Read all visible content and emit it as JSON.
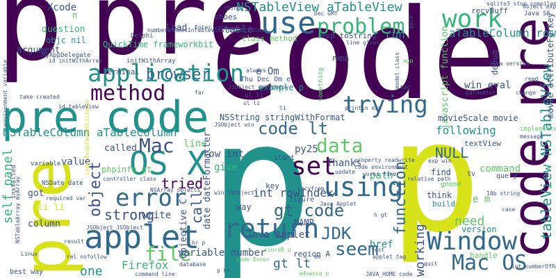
{
  "palette": {
    "dark_purple": "#440154",
    "deep_blue": "#3b528b",
    "teal": "#21918c",
    "green": "#5ec962",
    "yellow": "#d8e219",
    "navy": "#31688e",
    "sea_green": "#35b779"
  },
  "words": [
    {
      "text": "code",
      "color": "#440154"
    },
    {
      "text": "p",
      "color": "#21918c"
    },
    {
      "text": "pre",
      "color": "#440154"
    },
    {
      "text": "p",
      "color": "#440154"
    },
    {
      "text": "pre code",
      "color": "#21918c"
    },
    {
      "text": "pre",
      "color": "#d8e219"
    },
    {
      "text": "p",
      "color": "#d8e219"
    },
    {
      "text": "code pre",
      "color": "#440154"
    },
    {
      "text": "applet",
      "color": "#31688e"
    },
    {
      "text": "application",
      "color": "#21918c"
    },
    {
      "text": "use",
      "color": "#31688e"
    },
    {
      "text": "OS X",
      "color": "#21918c"
    },
    {
      "text": "return",
      "color": "#31688e"
    },
    {
      "text": "using",
      "color": "#31688e"
    },
    {
      "text": "work",
      "color": "#35b779"
    },
    {
      "text": "problem",
      "color": "#35b779"
    },
    {
      "text": "trying",
      "color": "#31688e"
    },
    {
      "text": "Window",
      "color": "#31688e"
    },
    {
      "text": "Mac OS",
      "color": "#31688e"
    },
    {
      "text": "error",
      "color": "#31688e"
    },
    {
      "text": "method",
      "color": "#440154"
    },
    {
      "text": "set",
      "color": "#440154"
    },
    {
      "text": "NSTableView aTableView",
      "color": "#21918c"
    },
    {
      "text": "aTableColumn row",
      "color": "#21918c"
    },
    {
      "text": "tableView NSTableView",
      "color": "#21918c"
    },
    {
      "text": "object",
      "color": "#3b528b"
    },
    {
      "text": "file",
      "color": "#5ec962"
    },
    {
      "text": "browser",
      "color": "#31688e"
    },
    {
      "text": "Mac",
      "color": "#3b528b"
    },
    {
      "text": "data",
      "color": "#5ec962"
    },
    {
      "text": "code lt",
      "color": "#31688e"
    },
    {
      "text": "gt code",
      "color": "#31688e"
    },
    {
      "text": "function",
      "color": "#31688e"
    },
    {
      "text": "seem",
      "color": "#31688e"
    },
    {
      "text": "JDK",
      "color": "#31688e"
    },
    {
      "text": "Firefox",
      "color": "#35b779"
    },
    {
      "text": "strong",
      "color": "#3b528b"
    },
    {
      "text": "tried",
      "color": "#440154"
    },
    {
      "text": "call",
      "color": "#3b528b"
    },
    {
      "text": "NSTableColumn aTableColumn",
      "color": "#21918c"
    },
    {
      "text": "self panel",
      "color": "#35b779"
    },
    {
      "text": "NULL",
      "color": "#31688e"
    },
    {
      "text": "need",
      "color": "#5ec962"
    },
    {
      "text": "working",
      "color": "#3b528b"
    },
    {
      "text": "one",
      "color": "#21918c"
    },
    {
      "text": "gt lt",
      "color": "#31688e"
    },
    {
      "text": "Java Applet",
      "color": "#3b528b"
    },
    {
      "text": "int rowIndex",
      "color": "#3b528b"
    },
    {
      "text": "following",
      "color": "#21918c"
    },
    {
      "text": "run",
      "color": "#21918c"
    },
    {
      "text": "Xcode",
      "color": "#3b528b"
    },
    {
      "text": "question",
      "color": "#35b779"
    },
    {
      "text": "argument",
      "color": "#3b528b"
    },
    {
      "text": "load",
      "color": "#3b528b"
    },
    {
      "text": "table",
      "color": "#3b528b"
    },
    {
      "text": "e Om",
      "color": "#3b528b"
    },
    {
      "text": "NSString stringWithFormat",
      "color": "#3b528b"
    },
    {
      "text": "line",
      "color": "#5ec962"
    },
    {
      "text": "value",
      "color": "#3b528b"
    },
    {
      "text": "py25",
      "color": "#3b528b"
    },
    {
      "text": "Thanks",
      "color": "#3b528b"
    },
    {
      "text": "give",
      "color": "#35b779"
    },
    {
      "text": "row int",
      "color": "#3b528b"
    },
    {
      "text": "path",
      "color": "#35b779"
    },
    {
      "text": "command",
      "color": "#5ec962"
    },
    {
      "text": "href",
      "color": "#21918c"
    },
    {
      "text": "MAMP",
      "color": "#3b528b"
    },
    {
      "text": "variable number",
      "color": "#3b528b"
    },
    {
      "text": "date dateFormatter",
      "color": "#3b528b"
    },
    {
      "text": "Objective C",
      "color": "#3b528b"
    },
    {
      "text": "write",
      "color": "#3b528b"
    },
    {
      "text": "got",
      "color": "#3b528b"
    },
    {
      "text": "li li",
      "color": "#d8e219"
    },
    {
      "text": "column",
      "color": "#3b528b"
    },
    {
      "text": "called",
      "color": "#3b528b"
    },
    {
      "text": "textView",
      "color": "#3b528b"
    },
    {
      "text": "win eval",
      "color": "#3b528b"
    },
    {
      "text": "debug",
      "color": "#3b528b"
    },
    {
      "text": "javascript function",
      "color": "#5ec962"
    },
    {
      "text": "movie attributeForKey",
      "color": "#3b528b"
    },
    {
      "text": "movieScale movie",
      "color": "#3b528b"
    },
    {
      "text": "QuickTime frameworkbit",
      "color": "#35b779"
    },
    {
      "text": "initWithArray",
      "color": "#3b528b"
    },
    {
      "text": "objc nil",
      "color": "#21918c"
    },
    {
      "text": "version",
      "color": "#21918c"
    },
    {
      "text": "e m",
      "color": "#5ec962"
    },
    {
      "text": "class method",
      "color": "#5ec962"
    },
    {
      "text": "exp toString",
      "color": "#3b528b"
    },
    {
      "text": "key",
      "color": "#3b528b"
    },
    {
      "text": "think",
      "color": "#3b528b"
    },
    {
      "text": "find",
      "color": "#3b528b"
    },
    {
      "text": "gnome",
      "color": "#5ec962"
    },
    {
      "text": "phpinfo gt",
      "color": "#5ec962"
    },
    {
      "text": "terminal",
      "color": "#3b528b"
    },
    {
      "text": "shoes",
      "color": "#3b528b"
    },
    {
      "text": "recvBuff",
      "color": "#3b528b"
    },
    {
      "text": "n",
      "color": "#5ec962"
    },
    {
      "text": "way",
      "color": "#3b528b"
    },
    {
      "text": "figure",
      "color": "#3b528b"
    },
    {
      "text": "build",
      "color": "#21918c"
    },
    {
      "text": "region A",
      "color": "#3b528b"
    },
    {
      "text": "handle",
      "color": "#5ec962"
    },
    {
      "text": "FMDB",
      "color": "#3b528b"
    },
    {
      "text": "start",
      "color": "#3b528b"
    },
    {
      "text": "Delphi",
      "color": "#3b528b"
    },
    {
      "text": "Java SE",
      "color": "#3b528b"
    },
    {
      "text": "MyAppDelegate",
      "color": "#3b528b"
    },
    {
      "text": "id initWithArray",
      "color": "#3b528b"
    },
    {
      "text": "best way",
      "color": "#3b528b"
    },
    {
      "text": "Linux",
      "color": "#3b528b"
    },
    {
      "text": "NSDate date",
      "color": "#3b528b"
    },
    {
      "text": "required var",
      "color": "#3b528b"
    },
    {
      "text": "variable",
      "color": "#3b528b"
    },
    {
      "text": "installed",
      "color": "#3b528b"
    },
    {
      "text": "take created",
      "color": "#3b528b"
    },
    {
      "text": "environment variable",
      "color": "#3b528b"
    },
    {
      "text": "result",
      "color": "#3b528b"
    },
    {
      "text": "rel nofollow",
      "color": "#3b528b"
    },
    {
      "text": "command line",
      "color": "#3b528b"
    },
    {
      "text": "database",
      "color": "#3b528b"
    },
    {
      "text": "JSObject win",
      "color": "#3b528b"
    },
    {
      "text": "JSObject JSObject",
      "color": "#3b528b"
    },
    {
      "text": "NSArray objects",
      "color": "#3b528b"
    },
    {
      "text": "controller class",
      "color": "#3b528b"
    },
    {
      "text": "ul li",
      "color": "#3b528b"
    },
    {
      "text": "Enter code",
      "color": "#3b528b"
    },
    {
      "text": "Thu Dec Om e",
      "color": "#3b528b"
    },
    {
      "text": "JSObject getWindow",
      "color": "#3b528b"
    },
    {
      "text": "always",
      "color": "#3b528b"
    },
    {
      "text": "example p",
      "color": "#21918c"
    },
    {
      "text": "println exp",
      "color": "#3b528b"
    },
    {
      "text": "line gives",
      "color": "#3b528b"
    },
    {
      "text": "property readwrite",
      "color": "#3b528b"
    },
    {
      "text": "code environment",
      "color": "#3b528b"
    },
    {
      "text": "works fine",
      "color": "#3b528b"
    },
    {
      "text": "update",
      "color": "#3b528b"
    },
    {
      "text": "recvfrom",
      "color": "#3b528b"
    },
    {
      "text": "relative path",
      "color": "#3b528b"
    },
    {
      "text": "exp win",
      "color": "#3b528b"
    },
    {
      "text": "test",
      "color": "#3b528b"
    },
    {
      "text": "applet tag",
      "color": "#3b528b"
    },
    {
      "text": "JAVA_HOME code",
      "color": "#3b528b"
    },
    {
      "text": "quit",
      "color": "#3b528b"
    },
    {
      "text": "tv",
      "color": "#3b528b"
    },
    {
      "text": "query",
      "color": "#3b528b"
    },
    {
      "text": "10b string",
      "color": "#3b528b"
    },
    {
      "text": "case",
      "color": "#3b528b"
    },
    {
      "text": "implemented",
      "color": "#5ec962"
    },
    {
      "text": "message",
      "color": "#3b528b"
    },
    {
      "text": "parameter",
      "color": "#3b528b"
    },
    {
      "text": "change",
      "color": "#3b528b"
    },
    {
      "text": "read",
      "color": "#3b528b"
    },
    {
      "text": "java version",
      "color": "#3b528b"
    },
    {
      "text": "Object exp",
      "color": "#3b528b"
    },
    {
      "text": "sqlite3_stop compiledStatement",
      "color": "#3b528b"
    },
    {
      "text": "int numberOfRowsInTableView",
      "color": "#3b528b"
    },
    {
      "text": "Dec GMT",
      "color": "#3b528b"
    },
    {
      "text": "thing",
      "color": "#3b528b"
    },
    {
      "text": "far",
      "color": "#3b528b"
    },
    {
      "text": "bad",
      "color": "#3b528b"
    },
    {
      "text": "app",
      "color": "#5ec962"
    },
    {
      "text": "something",
      "color": "#5ec962"
    },
    {
      "text": "model class",
      "color": "#3b528b"
    },
    {
      "text": "geck",
      "color": "#3b528b"
    },
    {
      "text": "win JSObject",
      "color": "#3b528b"
    },
    {
      "text": "code DropTargetListener",
      "color": "#d8e219"
    },
    {
      "text": "h gt",
      "color": "#3b528b"
    },
    {
      "text": "Java Applet",
      "color": "#3b528b"
    },
    {
      "text": "advance p",
      "color": "#5ec962"
    },
    {
      "text": "NSTableArray myArray",
      "color": "#3b528b"
    },
    {
      "text": "hr p",
      "color": "#3b528b"
    },
    {
      "text": "code Enter",
      "color": "#5ec962"
    },
    {
      "text": "scoreB p",
      "color": "#5ec962"
    },
    {
      "text": "p hr",
      "color": "#3b528b"
    },
    {
      "text": "em",
      "color": "#3b528b"
    },
    {
      "text": "id tableView",
      "color": "#3b528b"
    },
    {
      "text": "numberOfRowsInTableView NSTableView",
      "color": "#3b528b"
    },
    {
      "text": "ul li",
      "color": "#3b528b"
    },
    {
      "text": "li",
      "color": "#3b528b"
    }
  ]
}
